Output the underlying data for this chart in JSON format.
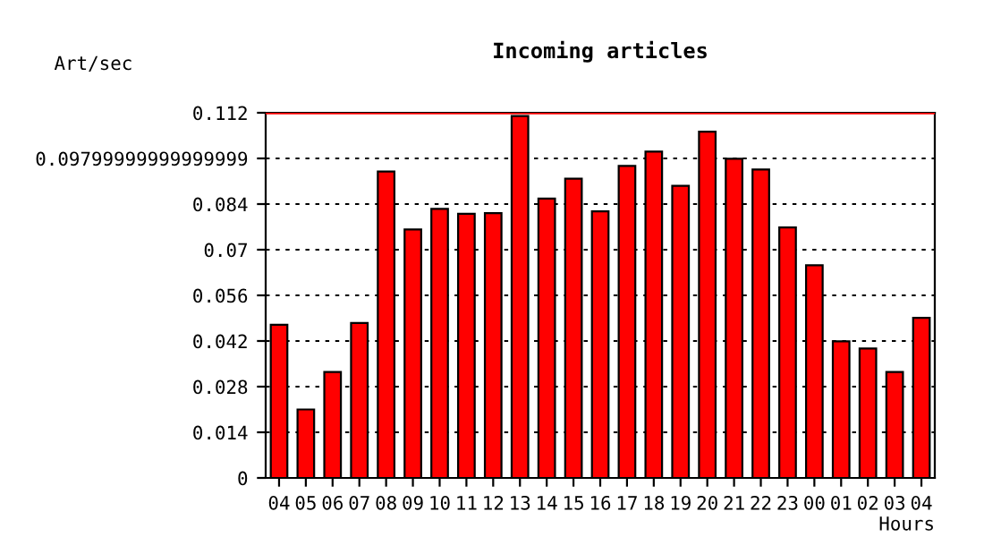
{
  "chart_data": {
    "type": "bar",
    "title": "Incoming articles",
    "ylabel": "Art/sec",
    "xlabel": "Hours",
    "categories": [
      "04",
      "05",
      "06",
      "07",
      "08",
      "09",
      "10",
      "11",
      "12",
      "13",
      "14",
      "15",
      "16",
      "17",
      "18",
      "19",
      "20",
      "21",
      "22",
      "23",
      "00",
      "01",
      "02",
      "03",
      "04"
    ],
    "values": [
      0.047,
      0.021,
      0.0325,
      0.0475,
      0.094,
      0.0762,
      0.0825,
      0.081,
      0.0812,
      0.111,
      0.0857,
      0.0918,
      0.0818,
      0.0957,
      0.1001,
      0.0896,
      0.1062,
      0.0979,
      0.0946,
      0.0768,
      0.0652,
      0.0419,
      0.0397,
      0.0325,
      0.0491
    ],
    "color": "#ff0000",
    "ylim": [
      0,
      0.112
    ],
    "yticks": [
      0,
      0.014,
      0.028,
      0.042,
      0.056,
      0.07,
      0.084,
      {
        "value": 0.098,
        "label": "0.09799999999999999"
      },
      0.112
    ],
    "grid": "y",
    "ref_lines": [
      {
        "axis": "y",
        "value": 0.112,
        "color": "#ff0000",
        "line_style": "solid"
      }
    ]
  }
}
